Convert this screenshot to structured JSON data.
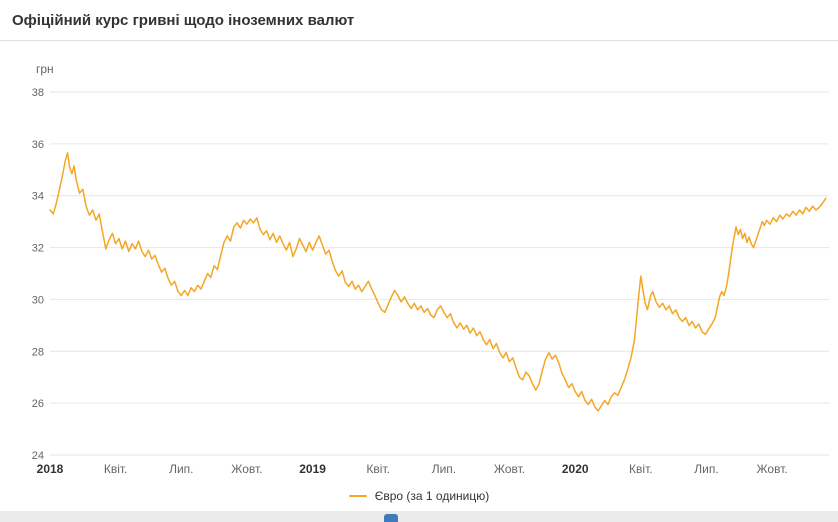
{
  "header": {
    "title": "Офіційний курс гривні щодо іноземних валют"
  },
  "chart_data": {
    "type": "line",
    "title": "Офіційний курс гривні щодо іноземних валют",
    "ylabel": "грн",
    "xlabel": "",
    "x_unit": "months since 2018-01",
    "ylim": [
      24,
      38
    ],
    "xlim": [
      0,
      35.6
    ],
    "grid": "horizontal",
    "legend_position": "bottom",
    "y_ticks": [
      24,
      26,
      28,
      30,
      32,
      34,
      36,
      38
    ],
    "x_ticks": [
      {
        "pos": 0,
        "label": "2018",
        "year": true
      },
      {
        "pos": 3,
        "label": "Квіт.",
        "year": false
      },
      {
        "pos": 6,
        "label": "Лип.",
        "year": false
      },
      {
        "pos": 9,
        "label": "Жовт.",
        "year": false
      },
      {
        "pos": 12,
        "label": "2019",
        "year": true
      },
      {
        "pos": 15,
        "label": "Квіт.",
        "year": false
      },
      {
        "pos": 18,
        "label": "Лип.",
        "year": false
      },
      {
        "pos": 21,
        "label": "Жовт.",
        "year": false
      },
      {
        "pos": 24,
        "label": "2020",
        "year": true
      },
      {
        "pos": 27,
        "label": "Квіт.",
        "year": false
      },
      {
        "pos": 30,
        "label": "Лип.",
        "year": false
      },
      {
        "pos": 33,
        "label": "Жовт.",
        "year": false
      }
    ],
    "series": [
      {
        "name": "Євро (за 1 одиницю)",
        "color": "#F5A623",
        "points": [
          [
            0,
            33.45
          ],
          [
            0.15,
            33.3
          ],
          [
            0.3,
            33.75
          ],
          [
            0.45,
            34.3
          ],
          [
            0.6,
            34.9
          ],
          [
            0.7,
            35.35
          ],
          [
            0.8,
            35.65
          ],
          [
            0.9,
            35.1
          ],
          [
            1.0,
            34.85
          ],
          [
            1.1,
            35.15
          ],
          [
            1.2,
            34.6
          ],
          [
            1.35,
            34.1
          ],
          [
            1.5,
            34.25
          ],
          [
            1.65,
            33.6
          ],
          [
            1.8,
            33.25
          ],
          [
            1.95,
            33.45
          ],
          [
            2.1,
            33.05
          ],
          [
            2.25,
            33.3
          ],
          [
            2.4,
            32.6
          ],
          [
            2.55,
            31.95
          ],
          [
            2.7,
            32.3
          ],
          [
            2.85,
            32.55
          ],
          [
            3.0,
            32.15
          ],
          [
            3.15,
            32.35
          ],
          [
            3.3,
            31.95
          ],
          [
            3.45,
            32.25
          ],
          [
            3.6,
            31.85
          ],
          [
            3.75,
            32.15
          ],
          [
            3.9,
            31.95
          ],
          [
            4.05,
            32.25
          ],
          [
            4.2,
            31.85
          ],
          [
            4.35,
            31.65
          ],
          [
            4.5,
            31.9
          ],
          [
            4.65,
            31.55
          ],
          [
            4.8,
            31.7
          ],
          [
            4.95,
            31.35
          ],
          [
            5.1,
            31.05
          ],
          [
            5.25,
            31.2
          ],
          [
            5.4,
            30.8
          ],
          [
            5.55,
            30.55
          ],
          [
            5.7,
            30.7
          ],
          [
            5.85,
            30.3
          ],
          [
            6.0,
            30.15
          ],
          [
            6.15,
            30.35
          ],
          [
            6.3,
            30.15
          ],
          [
            6.45,
            30.45
          ],
          [
            6.6,
            30.3
          ],
          [
            6.75,
            30.55
          ],
          [
            6.9,
            30.4
          ],
          [
            7.05,
            30.7
          ],
          [
            7.2,
            31.0
          ],
          [
            7.35,
            30.85
          ],
          [
            7.5,
            31.3
          ],
          [
            7.65,
            31.15
          ],
          [
            7.8,
            31.7
          ],
          [
            7.95,
            32.2
          ],
          [
            8.1,
            32.45
          ],
          [
            8.25,
            32.25
          ],
          [
            8.4,
            32.8
          ],
          [
            8.55,
            32.95
          ],
          [
            8.7,
            32.75
          ],
          [
            8.85,
            33.05
          ],
          [
            9.0,
            32.9
          ],
          [
            9.15,
            33.1
          ],
          [
            9.3,
            32.95
          ],
          [
            9.45,
            33.15
          ],
          [
            9.6,
            32.7
          ],
          [
            9.75,
            32.5
          ],
          [
            9.9,
            32.65
          ],
          [
            10.05,
            32.3
          ],
          [
            10.2,
            32.55
          ],
          [
            10.35,
            32.2
          ],
          [
            10.5,
            32.45
          ],
          [
            10.65,
            32.15
          ],
          [
            10.8,
            31.9
          ],
          [
            10.95,
            32.2
          ],
          [
            11.1,
            31.65
          ],
          [
            11.25,
            31.95
          ],
          [
            11.4,
            32.35
          ],
          [
            11.55,
            32.1
          ],
          [
            11.7,
            31.85
          ],
          [
            11.85,
            32.2
          ],
          [
            12.0,
            31.9
          ],
          [
            12.15,
            32.2
          ],
          [
            12.3,
            32.45
          ],
          [
            12.45,
            32.1
          ],
          [
            12.6,
            31.75
          ],
          [
            12.75,
            31.9
          ],
          [
            12.9,
            31.45
          ],
          [
            13.05,
            31.1
          ],
          [
            13.2,
            30.9
          ],
          [
            13.35,
            31.1
          ],
          [
            13.5,
            30.65
          ],
          [
            13.65,
            30.5
          ],
          [
            13.8,
            30.7
          ],
          [
            13.95,
            30.4
          ],
          [
            14.1,
            30.55
          ],
          [
            14.25,
            30.3
          ],
          [
            14.4,
            30.5
          ],
          [
            14.55,
            30.7
          ],
          [
            14.7,
            30.4
          ],
          [
            14.85,
            30.15
          ],
          [
            15.0,
            29.85
          ],
          [
            15.15,
            29.6
          ],
          [
            15.3,
            29.5
          ],
          [
            15.45,
            29.8
          ],
          [
            15.6,
            30.1
          ],
          [
            15.75,
            30.35
          ],
          [
            15.9,
            30.15
          ],
          [
            16.05,
            29.9
          ],
          [
            16.2,
            30.1
          ],
          [
            16.35,
            29.85
          ],
          [
            16.5,
            29.65
          ],
          [
            16.65,
            29.85
          ],
          [
            16.8,
            29.6
          ],
          [
            16.95,
            29.75
          ],
          [
            17.1,
            29.5
          ],
          [
            17.25,
            29.65
          ],
          [
            17.4,
            29.4
          ],
          [
            17.55,
            29.3
          ],
          [
            17.7,
            29.6
          ],
          [
            17.85,
            29.75
          ],
          [
            18.0,
            29.5
          ],
          [
            18.15,
            29.3
          ],
          [
            18.3,
            29.45
          ],
          [
            18.45,
            29.1
          ],
          [
            18.6,
            28.9
          ],
          [
            18.75,
            29.1
          ],
          [
            18.9,
            28.85
          ],
          [
            19.05,
            29.0
          ],
          [
            19.2,
            28.7
          ],
          [
            19.35,
            28.9
          ],
          [
            19.5,
            28.6
          ],
          [
            19.65,
            28.75
          ],
          [
            19.8,
            28.45
          ],
          [
            19.95,
            28.25
          ],
          [
            20.1,
            28.45
          ],
          [
            20.25,
            28.1
          ],
          [
            20.4,
            28.3
          ],
          [
            20.55,
            27.95
          ],
          [
            20.7,
            27.75
          ],
          [
            20.85,
            27.95
          ],
          [
            21.0,
            27.6
          ],
          [
            21.15,
            27.75
          ],
          [
            21.3,
            27.35
          ],
          [
            21.45,
            27.0
          ],
          [
            21.6,
            26.9
          ],
          [
            21.75,
            27.2
          ],
          [
            21.9,
            27.05
          ],
          [
            22.05,
            26.75
          ],
          [
            22.2,
            26.5
          ],
          [
            22.35,
            26.75
          ],
          [
            22.5,
            27.25
          ],
          [
            22.65,
            27.7
          ],
          [
            22.8,
            27.95
          ],
          [
            22.95,
            27.7
          ],
          [
            23.1,
            27.85
          ],
          [
            23.25,
            27.55
          ],
          [
            23.4,
            27.15
          ],
          [
            23.55,
            26.9
          ],
          [
            23.7,
            26.6
          ],
          [
            23.85,
            26.75
          ],
          [
            24.0,
            26.45
          ],
          [
            24.15,
            26.25
          ],
          [
            24.3,
            26.45
          ],
          [
            24.45,
            26.1
          ],
          [
            24.6,
            25.95
          ],
          [
            24.75,
            26.15
          ],
          [
            24.9,
            25.85
          ],
          [
            25.05,
            25.7
          ],
          [
            25.2,
            25.9
          ],
          [
            25.35,
            26.1
          ],
          [
            25.5,
            25.95
          ],
          [
            25.65,
            26.25
          ],
          [
            25.8,
            26.4
          ],
          [
            25.95,
            26.3
          ],
          [
            26.1,
            26.6
          ],
          [
            26.25,
            26.9
          ],
          [
            26.4,
            27.3
          ],
          [
            26.55,
            27.75
          ],
          [
            26.7,
            28.4
          ],
          [
            26.8,
            29.2
          ],
          [
            26.9,
            30.1
          ],
          [
            27.0,
            30.9
          ],
          [
            27.1,
            30.35
          ],
          [
            27.2,
            29.85
          ],
          [
            27.3,
            29.6
          ],
          [
            27.45,
            30.15
          ],
          [
            27.55,
            30.3
          ],
          [
            27.7,
            29.9
          ],
          [
            27.85,
            29.7
          ],
          [
            28.0,
            29.85
          ],
          [
            28.15,
            29.6
          ],
          [
            28.3,
            29.75
          ],
          [
            28.45,
            29.45
          ],
          [
            28.6,
            29.6
          ],
          [
            28.75,
            29.3
          ],
          [
            28.9,
            29.15
          ],
          [
            29.05,
            29.3
          ],
          [
            29.2,
            29.0
          ],
          [
            29.35,
            29.15
          ],
          [
            29.5,
            28.9
          ],
          [
            29.65,
            29.05
          ],
          [
            29.8,
            28.75
          ],
          [
            29.95,
            28.65
          ],
          [
            30.1,
            28.85
          ],
          [
            30.25,
            29.05
          ],
          [
            30.4,
            29.3
          ],
          [
            30.5,
            29.7
          ],
          [
            30.6,
            30.1
          ],
          [
            30.7,
            30.3
          ],
          [
            30.8,
            30.15
          ],
          [
            30.9,
            30.45
          ],
          [
            31.0,
            30.9
          ],
          [
            31.1,
            31.5
          ],
          [
            31.2,
            32.1
          ],
          [
            31.3,
            32.55
          ],
          [
            31.35,
            32.8
          ],
          [
            31.45,
            32.5
          ],
          [
            31.55,
            32.7
          ],
          [
            31.65,
            32.35
          ],
          [
            31.75,
            32.55
          ],
          [
            31.85,
            32.2
          ],
          [
            31.95,
            32.4
          ],
          [
            32.05,
            32.15
          ],
          [
            32.15,
            32.0
          ],
          [
            32.25,
            32.25
          ],
          [
            32.35,
            32.5
          ],
          [
            32.45,
            32.75
          ],
          [
            32.55,
            33.0
          ],
          [
            32.65,
            32.85
          ],
          [
            32.75,
            33.05
          ],
          [
            32.9,
            32.9
          ],
          [
            33.05,
            33.15
          ],
          [
            33.2,
            33.0
          ],
          [
            33.35,
            33.25
          ],
          [
            33.5,
            33.1
          ],
          [
            33.65,
            33.3
          ],
          [
            33.8,
            33.2
          ],
          [
            33.95,
            33.4
          ],
          [
            34.1,
            33.25
          ],
          [
            34.25,
            33.45
          ],
          [
            34.4,
            33.3
          ],
          [
            34.55,
            33.55
          ],
          [
            34.7,
            33.4
          ],
          [
            34.85,
            33.6
          ],
          [
            35.0,
            33.45
          ],
          [
            35.15,
            33.55
          ],
          [
            35.3,
            33.7
          ],
          [
            35.45,
            33.9
          ]
        ]
      }
    ]
  },
  "colors": {
    "line": "#F5A623",
    "grid": "#E6E6E6",
    "axis_text": "#666666",
    "year_text": "#333333",
    "title_text": "#333333",
    "divider": "#E0E0E0",
    "footer_bg": "#EAEAEA",
    "footer_accent": "#3E7CB9"
  }
}
